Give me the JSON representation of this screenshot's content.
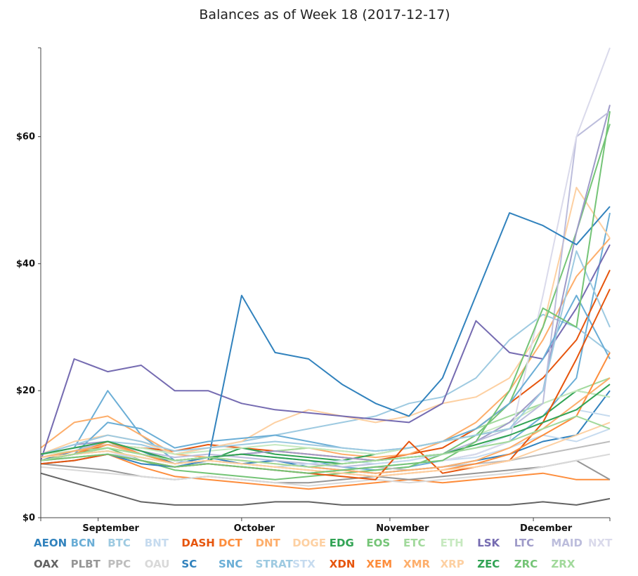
{
  "chart_data": {
    "type": "line",
    "title": "Balances as of Week 18 (2017-12-17)",
    "xlabel": "",
    "ylabel": "",
    "x_range": [
      "2017-08-20",
      "2017-12-17"
    ],
    "x_ticks": [
      {
        "date": "2017-09-01",
        "label": "September"
      },
      {
        "date": "2017-10-01",
        "label": "October"
      },
      {
        "date": "2017-11-01",
        "label": "November"
      },
      {
        "date": "2017-12-01",
        "label": "December"
      }
    ],
    "ylim": [
      0,
      74
    ],
    "y_ticks": [
      {
        "value": 0,
        "label": "$0"
      },
      {
        "value": 20,
        "label": "$20"
      },
      {
        "value": 40,
        "label": "$40"
      },
      {
        "value": 60,
        "label": "$60"
      }
    ],
    "grid": false,
    "legend_position": "bottom",
    "x_dates": [
      "2017-08-20",
      "2017-08-27",
      "2017-09-03",
      "2017-09-10",
      "2017-09-17",
      "2017-09-24",
      "2017-10-01",
      "2017-10-08",
      "2017-10-15",
      "2017-10-22",
      "2017-10-29",
      "2017-11-05",
      "2017-11-12",
      "2017-11-19",
      "2017-11-26",
      "2017-12-03",
      "2017-12-10",
      "2017-12-17"
    ],
    "series": [
      {
        "name": "AEON",
        "color": "#3182bd",
        "values": [
          9.0,
          10.5,
          12.0,
          10.5,
          8.5,
          9.5,
          8.5,
          9.0,
          8.0,
          7.5,
          7.0,
          7.5,
          8.0,
          9.0,
          10.0,
          12.0,
          13.0,
          20.0
        ]
      },
      {
        "name": "BCN",
        "color": "#6baed6",
        "values": [
          10.0,
          11.0,
          20.0,
          13.0,
          9.0,
          9.5,
          10.0,
          9.5,
          9.0,
          8.0,
          7.5,
          8.0,
          9.0,
          10.0,
          12.0,
          16.0,
          22.0,
          48.0
        ]
      },
      {
        "name": "BTC",
        "color": "#9ecae1",
        "values": [
          9.5,
          10.5,
          12.0,
          11.5,
          10.0,
          11.0,
          12.0,
          13.0,
          14.0,
          15.0,
          16.0,
          18.0,
          19.0,
          22.0,
          28.0,
          32.0,
          30.0,
          26.0
        ]
      },
      {
        "name": "BNT",
        "color": "#c6dbef",
        "values": [
          10.0,
          11.0,
          12.0,
          10.0,
          9.0,
          8.5,
          8.0,
          7.5,
          7.0,
          7.5,
          8.0,
          8.5,
          9.0,
          9.5,
          11.0,
          13.0,
          12.0,
          14.0
        ]
      },
      {
        "name": "DASH",
        "color": "#e6550d",
        "values": [
          9.0,
          10.0,
          11.5,
          11.0,
          10.5,
          11.5,
          11.0,
          10.5,
          10.0,
          9.5,
          9.0,
          10.0,
          11.0,
          14.0,
          18.0,
          22.0,
          28.0,
          39.0
        ]
      },
      {
        "name": "DCT",
        "color": "#fd8d3c",
        "values": [
          9.0,
          9.5,
          10.0,
          8.0,
          6.5,
          6.0,
          5.5,
          5.0,
          4.5,
          5.0,
          5.5,
          6.0,
          5.5,
          6.0,
          6.5,
          7.0,
          6.0,
          6.0
        ]
      },
      {
        "name": "DNT",
        "color": "#fdae6b",
        "values": [
          11.0,
          15.0,
          16.0,
          13.0,
          10.0,
          9.5,
          10.0,
          10.5,
          11.0,
          10.0,
          9.5,
          10.0,
          12.0,
          15.0,
          20.0,
          28.0,
          38.0,
          44.0
        ]
      },
      {
        "name": "DOGE",
        "color": "#fdd0a2",
        "values": [
          10.0,
          12.0,
          13.0,
          12.0,
          10.0,
          11.0,
          12.0,
          15.0,
          17.0,
          16.0,
          15.0,
          16.0,
          18.0,
          19.0,
          22.0,
          30.0,
          52.0,
          44.0
        ]
      },
      {
        "name": "EDG",
        "color": "#31a354",
        "values": [
          9.0,
          10.0,
          10.5,
          9.5,
          8.5,
          9.0,
          11.0,
          10.0,
          9.5,
          9.0,
          10.0,
          11.0,
          12.0,
          13.0,
          14.0,
          16.0,
          20.0,
          19.0
        ]
      },
      {
        "name": "EOS",
        "color": "#74c476",
        "values": [
          9.5,
          10.0,
          11.0,
          9.0,
          7.5,
          7.0,
          6.5,
          6.0,
          6.5,
          7.0,
          7.5,
          8.0,
          10.0,
          13.0,
          18.0,
          30.0,
          45.0,
          62.0
        ]
      },
      {
        "name": "ETC",
        "color": "#a1d99b",
        "values": [
          10.0,
          10.5,
          11.0,
          10.0,
          9.0,
          9.5,
          10.0,
          10.5,
          11.0,
          10.5,
          10.0,
          11.0,
          12.0,
          14.0,
          16.0,
          18.0,
          20.0,
          22.0
        ]
      },
      {
        "name": "ETH",
        "color": "#c7e9c0",
        "values": [
          10.0,
          10.5,
          11.5,
          11.0,
          10.0,
          10.5,
          11.0,
          11.5,
          11.0,
          10.5,
          10.0,
          11.0,
          12.0,
          13.0,
          15.0,
          18.0,
          20.0,
          19.0
        ]
      },
      {
        "name": "LSK",
        "color": "#756bb1",
        "values": [
          9.0,
          25.0,
          23.0,
          24.0,
          20.0,
          20.0,
          18.0,
          17.0,
          16.5,
          16.0,
          15.5,
          15.0,
          18.0,
          31.0,
          26.0,
          25.0,
          33.0,
          43.0
        ]
      },
      {
        "name": "LTC",
        "color": "#9e9ac8",
        "values": [
          10.0,
          11.5,
          12.0,
          10.0,
          9.0,
          9.5,
          10.0,
          10.5,
          10.0,
          9.5,
          9.0,
          9.5,
          10.0,
          12.0,
          15.0,
          20.0,
          45.0,
          65.0
        ]
      },
      {
        "name": "MAID",
        "color": "#bcbddc",
        "values": [
          10.0,
          11.0,
          11.5,
          10.5,
          9.5,
          10.0,
          9.5,
          9.0,
          8.5,
          8.0,
          8.5,
          9.0,
          10.0,
          12.0,
          14.0,
          18.0,
          60.0,
          64.0
        ]
      },
      {
        "name": "NXT",
        "color": "#dadaeb",
        "values": [
          9.5,
          10.0,
          10.5,
          9.0,
          8.0,
          8.5,
          8.0,
          7.5,
          7.0,
          7.5,
          8.0,
          8.5,
          9.0,
          10.0,
          12.0,
          35.0,
          60.0,
          74.0
        ]
      },
      {
        "name": "OAX",
        "color": "#636363",
        "values": [
          7.0,
          5.5,
          4.0,
          2.5,
          2.0,
          2.0,
          2.0,
          2.5,
          2.5,
          2.0,
          2.0,
          2.0,
          2.0,
          2.0,
          2.0,
          2.5,
          2.0,
          3.0
        ]
      },
      {
        "name": "PLBT",
        "color": "#969696",
        "values": [
          8.5,
          8.0,
          7.5,
          6.5,
          6.0,
          6.5,
          6.0,
          5.5,
          5.5,
          6.0,
          6.5,
          6.0,
          6.5,
          7.0,
          7.5,
          8.0,
          9.0,
          6.0
        ]
      },
      {
        "name": "PPC",
        "color": "#bdbdbd",
        "values": [
          9.0,
          9.5,
          10.0,
          9.0,
          8.0,
          8.5,
          8.0,
          7.5,
          7.0,
          7.5,
          8.0,
          7.5,
          8.0,
          8.5,
          9.0,
          10.0,
          11.0,
          12.0
        ]
      },
      {
        "name": "OAU",
        "color": "#d9d9d9",
        "values": [
          8.0,
          7.5,
          7.0,
          6.5,
          6.0,
          6.5,
          6.0,
          5.5,
          5.0,
          5.5,
          6.0,
          5.5,
          6.0,
          6.5,
          7.0,
          8.0,
          9.0,
          10.0
        ]
      },
      {
        "name": "SC",
        "color": "#3182bd",
        "values": [
          8.5,
          9.0,
          10.0,
          8.5,
          8.0,
          9.0,
          35.0,
          26.0,
          25.0,
          21.0,
          18.0,
          16.0,
          22.0,
          35.0,
          48.0,
          46.0,
          43.0,
          49.0
        ]
      },
      {
        "name": "SNC",
        "color": "#6baed6",
        "values": [
          9.0,
          10.0,
          15.0,
          14.0,
          11.0,
          12.0,
          12.5,
          13.0,
          12.0,
          11.0,
          10.5,
          11.0,
          12.0,
          14.0,
          18.0,
          25.0,
          35.0,
          25.0
        ]
      },
      {
        "name": "STRAT",
        "color": "#9ecae1",
        "values": [
          10.0,
          11.5,
          13.0,
          12.0,
          10.5,
          11.0,
          11.5,
          12.0,
          11.5,
          11.0,
          10.5,
          11.0,
          12.0,
          13.0,
          14.0,
          20.0,
          42.0,
          30.0
        ]
      },
      {
        "name": "STX",
        "color": "#c6dbef",
        "values": [
          9.0,
          9.5,
          10.0,
          9.5,
          8.5,
          9.0,
          8.5,
          8.0,
          8.5,
          9.0,
          8.5,
          9.0,
          10.0,
          11.0,
          13.0,
          15.0,
          17.0,
          16.0
        ]
      },
      {
        "name": "XDN",
        "color": "#e6550d",
        "values": [
          8.5,
          9.0,
          10.0,
          9.0,
          8.0,
          8.5,
          8.0,
          7.5,
          7.0,
          6.5,
          6.0,
          12.0,
          7.0,
          8.0,
          9.0,
          15.0,
          25.0,
          36.0
        ]
      },
      {
        "name": "XEM",
        "color": "#fd8d3c",
        "values": [
          9.0,
          10.0,
          12.0,
          10.0,
          8.5,
          9.0,
          8.5,
          8.0,
          7.5,
          7.0,
          6.5,
          7.0,
          7.5,
          8.5,
          10.0,
          13.0,
          16.0,
          26.0
        ]
      },
      {
        "name": "XMR",
        "color": "#fdae6b",
        "values": [
          9.5,
          10.5,
          11.5,
          10.0,
          9.0,
          9.5,
          9.0,
          8.5,
          8.0,
          7.5,
          7.0,
          7.5,
          8.0,
          9.0,
          11.0,
          14.0,
          18.0,
          22.0
        ]
      },
      {
        "name": "XRP",
        "color": "#fdd0a2",
        "values": [
          9.5,
          10.0,
          10.5,
          9.5,
          8.5,
          9.0,
          8.5,
          8.0,
          7.5,
          7.0,
          6.5,
          7.0,
          7.5,
          8.0,
          9.0,
          11.0,
          13.0,
          15.0
        ]
      },
      {
        "name": "ZEC",
        "color": "#31a354",
        "values": [
          10.0,
          11.0,
          12.0,
          10.5,
          9.0,
          9.5,
          10.0,
          9.5,
          9.0,
          8.5,
          9.0,
          9.5,
          10.0,
          11.5,
          13.0,
          15.0,
          17.0,
          21.0
        ]
      },
      {
        "name": "ZRC",
        "color": "#74c476",
        "values": [
          9.0,
          9.5,
          10.0,
          9.0,
          8.0,
          8.5,
          8.0,
          7.5,
          7.0,
          7.5,
          8.0,
          8.5,
          9.0,
          12.0,
          20.0,
          33.0,
          30.0,
          64.0
        ]
      },
      {
        "name": "ZRX",
        "color": "#a1d99b",
        "values": [
          9.0,
          10.0,
          11.0,
          10.0,
          9.0,
          9.5,
          9.0,
          8.5,
          8.0,
          8.5,
          9.0,
          9.5,
          10.0,
          11.0,
          12.0,
          14.0,
          16.0,
          14.0
        ]
      }
    ],
    "legend_rows": [
      [
        "AEON",
        "BCN",
        "BTC",
        "BNT",
        "DASH",
        "DCT",
        "DNT",
        "DOGE",
        "EDG",
        "EOS",
        "ETC",
        "ETH",
        "LSK",
        "LTC",
        "MAID",
        "NXT"
      ],
      [
        "OAX",
        "PLBT",
        "PPC",
        "OAU",
        "SC",
        "SNC",
        "STRAT",
        "STX",
        "XDN",
        "XEM",
        "XMR",
        "XRP",
        "ZEC",
        "ZRC",
        "ZRX"
      ]
    ]
  }
}
